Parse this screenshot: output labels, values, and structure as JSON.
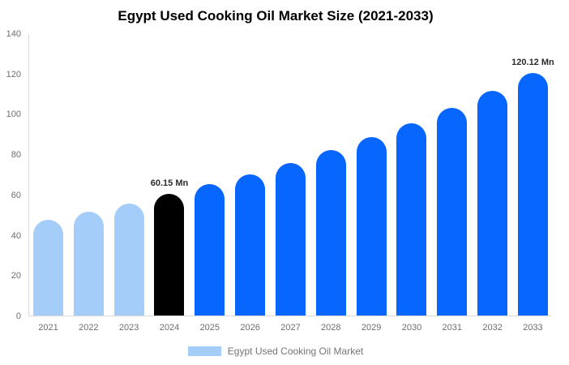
{
  "chart_data": {
    "type": "bar",
    "title": "Egypt Used Cooking Oil Market Size (2021-2033)",
    "unit": "Mn",
    "categories": [
      "2021",
      "2022",
      "2023",
      "2024",
      "2025",
      "2026",
      "2027",
      "2028",
      "2029",
      "2030",
      "2031",
      "2032",
      "2033"
    ],
    "values": [
      47.6,
      51.5,
      55.7,
      60.15,
      65.0,
      70.2,
      75.8,
      81.9,
      88.4,
      95.5,
      103.1,
      111.4,
      120.12
    ],
    "bar_colors": [
      "#a5cdf9",
      "#a5cdf9",
      "#a5cdf9",
      "#000000",
      "#0666fe",
      "#0666fe",
      "#0666fe",
      "#0666fe",
      "#0666fe",
      "#0666fe",
      "#0666fe",
      "#0666fe",
      "#0666fe"
    ],
    "ylim": [
      0,
      140
    ],
    "yticks": [
      0,
      20,
      40,
      60,
      80,
      100,
      120,
      140
    ],
    "grid": false,
    "annotations": [
      {
        "category": "2024",
        "text": "60.15 Mn"
      },
      {
        "category": "2033",
        "text": "120.12 Mn"
      }
    ],
    "legend": {
      "label": "Egypt Used Cooking Oil Market",
      "position": "bottom",
      "swatch_color": "#a5cdf9"
    },
    "colors": {
      "historical": "#a5cdf9",
      "base_year": "#000000",
      "forecast": "#0666fe",
      "axis_line": "#d9d9d9",
      "tick_text": "#6e6e6e"
    }
  }
}
